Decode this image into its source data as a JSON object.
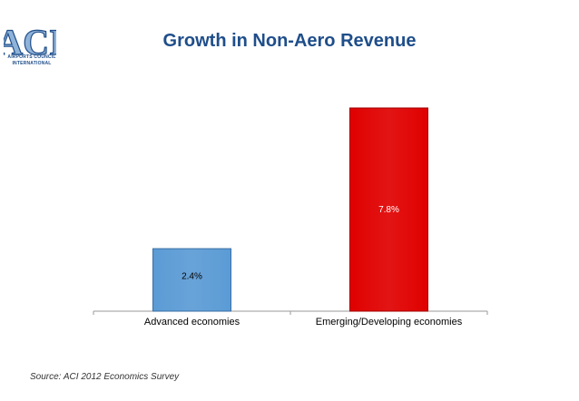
{
  "logo": {
    "mark": "ACI",
    "caption_line1": "AIRPORTS COUNCIL",
    "caption_line2": "INTERNATIONAL"
  },
  "chart_data": {
    "type": "bar",
    "title": "Growth in Non-Aero Revenue",
    "categories": [
      "Advanced economies",
      "Emerging/Developing economies"
    ],
    "values": [
      2.4,
      7.8
    ],
    "data_labels": [
      "2.4%",
      "7.8%"
    ],
    "colors": [
      "#5b9bd5",
      "#e00000"
    ],
    "ylim": [
      0,
      8
    ],
    "xlabel": "",
    "ylabel": "",
    "grid": false,
    "legend": "none"
  },
  "source": "Source: ACI 2012 Economics Survey"
}
